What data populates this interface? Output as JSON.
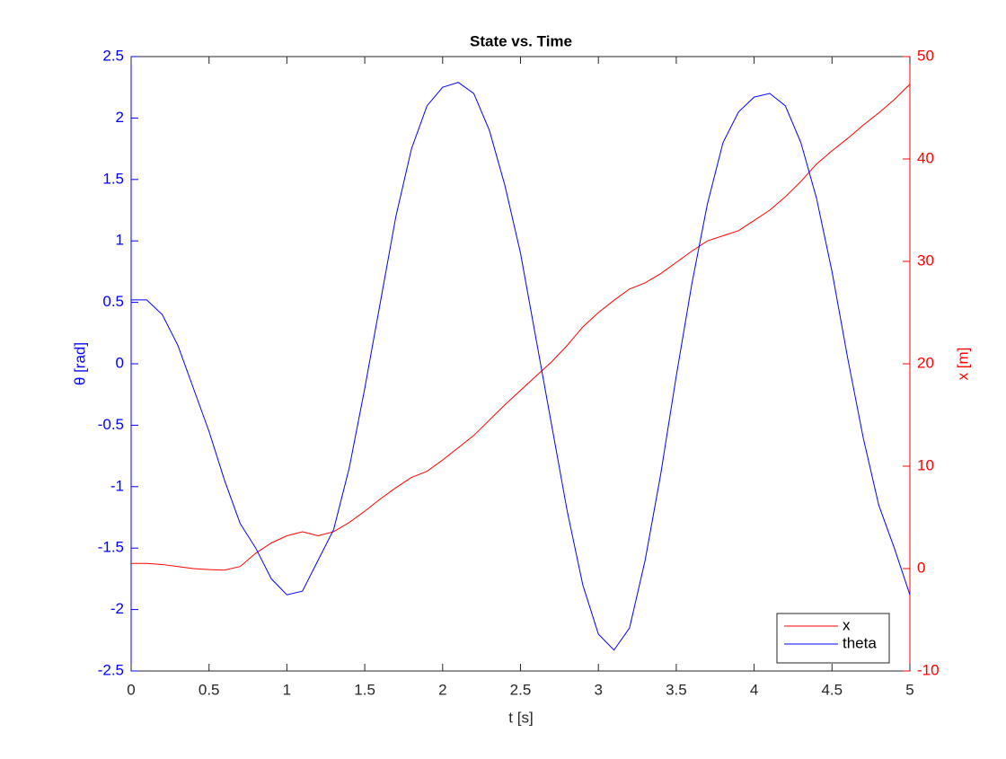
{
  "chart_data": {
    "type": "line",
    "title": "State vs. Time",
    "xlabel": "t [s]",
    "ylabel": "θ [rad]",
    "y2label": "x [m]",
    "x": [
      0,
      0.1,
      0.2,
      0.3,
      0.4,
      0.5,
      0.6,
      0.7,
      0.8,
      0.9,
      1,
      1.1,
      1.2,
      1.3,
      1.4,
      1.5,
      1.6,
      1.7,
      1.8,
      1.9,
      2,
      2.1,
      2.2,
      2.3,
      2.4,
      2.5,
      2.6,
      2.7,
      2.8,
      2.9,
      3,
      3.1,
      3.2,
      3.3,
      3.4,
      3.5,
      3.6,
      3.7,
      3.8,
      3.9,
      4,
      4.1,
      4.2,
      4.3,
      4.4,
      4.5,
      4.6,
      4.7,
      4.8,
      4.9,
      5
    ],
    "series": [
      {
        "name": "x",
        "color": "#ff0000",
        "axis": "y2",
        "values": [
          0.5,
          0.5,
          0.4,
          0.2,
          0,
          -0.1,
          -0.15,
          0.2,
          1.5,
          2.5,
          3.2,
          3.6,
          3.2,
          3.6,
          4.5,
          5.6,
          6.8,
          7.9,
          8.9,
          9.5,
          10.6,
          11.8,
          13,
          14.5,
          16,
          17.4,
          18.8,
          20.2,
          21.8,
          23.6,
          25,
          26.2,
          27.3,
          27.9,
          28.8,
          29.9,
          31,
          32,
          32.5,
          33,
          34,
          35,
          36.3,
          37.8,
          39.5,
          40.8,
          42,
          43.3,
          44.5,
          45.8,
          47.3
        ]
      },
      {
        "name": "theta",
        "color": "#0000ff",
        "values": [
          0.52,
          0.52,
          0.4,
          0.15,
          -0.2,
          -0.55,
          -0.95,
          -1.3,
          -1.5,
          -1.75,
          -1.88,
          -1.85,
          -1.6,
          -1.35,
          -0.85,
          -0.2,
          0.5,
          1.2,
          1.75,
          2.1,
          2.25,
          2.29,
          2.2,
          1.9,
          1.45,
          0.9,
          0.2,
          -0.5,
          -1.2,
          -1.8,
          -2.2,
          -2.33,
          -2.15,
          -1.6,
          -0.9,
          -0.1,
          0.65,
          1.3,
          1.8,
          2.05,
          2.17,
          2.2,
          2.1,
          1.8,
          1.35,
          0.75,
          0.05,
          -0.6,
          -1.15,
          -1.5,
          -1.88
        ]
      }
    ],
    "xlim": [
      0,
      5
    ],
    "xticks": [
      0,
      0.5,
      1,
      1.5,
      2,
      2.5,
      3,
      3.5,
      4,
      4.5,
      5
    ],
    "ylim": [
      -2.5,
      2.5
    ],
    "yticks": [
      -2.5,
      -2,
      -1.5,
      -1,
      -0.5,
      0,
      0.5,
      1,
      1.5,
      2,
      2.5
    ],
    "y2lim": [
      -10,
      50
    ],
    "y2ticks": [
      -10,
      0,
      10,
      20,
      30,
      40,
      50
    ],
    "ycolor": "#0000ff",
    "y2color": "#ff0000",
    "grid": false,
    "legend": "lower right"
  }
}
